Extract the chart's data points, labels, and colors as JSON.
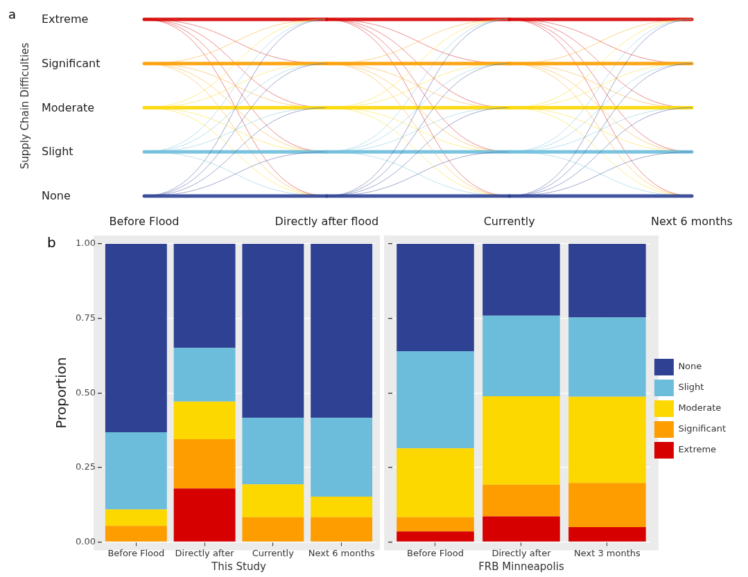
{
  "chart_data": [
    {
      "type": "other",
      "ylabel": "Supply Chain Difficulties",
      "annotations": [
        "a"
      ],
      "categories": [
        "Before Flood",
        "Directly after flood",
        "Currently",
        "Next 6 months"
      ],
      "y_categories": [
        "Extreme",
        "Significant",
        "Moderate",
        "Slight",
        "None"
      ],
      "colors": [
        "#d60000",
        "#fd9d00",
        "#fdd700",
        "#6cbddb",
        "#2e4193"
      ]
    },
    {
      "type": "bar",
      "stacked": true,
      "annotations": [
        "b"
      ],
      "ylabel": "Proportion",
      "xlabel": "This Study",
      "categories": [
        "Before Flood",
        "Directly after",
        "Currently",
        "Next 6 months"
      ],
      "ylim": [
        0,
        1
      ],
      "yticks": [
        {
          "value": 0,
          "label": "0.00"
        },
        {
          "value": 0.25,
          "label": "0.25"
        },
        {
          "value": 0.5,
          "label": "0.50"
        },
        {
          "value": 0.75,
          "label": "0.75"
        },
        {
          "value": 1,
          "label": "1.00"
        }
      ],
      "grid": true,
      "legend": false,
      "series": [
        {
          "color": "#d60000",
          "values": [
            0,
            0.179,
            0,
            0
          ]
        },
        {
          "color": "#fd9d00",
          "values": [
            0.054,
            0.166,
            0.083,
            0.083
          ]
        },
        {
          "color": "#fdd700",
          "values": [
            0.055,
            0.126,
            0.11,
            0.069
          ]
        },
        {
          "color": "#6cbddb",
          "values": [
            0.259,
            0.18,
            0.223,
            0.264
          ]
        },
        {
          "color": "#2e4193",
          "values": [
            0.632,
            0.349,
            0.584,
            0.584
          ]
        }
      ]
    },
    {
      "type": "bar",
      "stacked": true,
      "xlabel": "FRB Minneapolis",
      "categories": [
        "Before Flood",
        "Directly after",
        "Next 3 months"
      ],
      "ylim": [
        0,
        1
      ],
      "yticks": [
        {
          "value": 0,
          "label": null
        },
        {
          "value": 0.25,
          "label": null
        },
        {
          "value": 0.5,
          "label": null
        },
        {
          "value": 0.75,
          "label": null
        },
        {
          "value": 1,
          "label": null
        }
      ],
      "tick_labels": "x",
      "grid": true,
      "legend": "right",
      "series": [
        {
          "name": "Extreme",
          "color": "#d60000",
          "values": [
            0.035,
            0.086,
            0.05
          ]
        },
        {
          "name": "Significant",
          "color": "#fd9d00",
          "values": [
            0.048,
            0.106,
            0.148
          ]
        },
        {
          "name": "Moderate",
          "color": "#fdd700",
          "values": [
            0.231,
            0.297,
            0.289
          ]
        },
        {
          "name": "Slight",
          "color": "#6cbddb",
          "values": [
            0.326,
            0.27,
            0.266
          ]
        },
        {
          "name": "None",
          "color": "#2e4193",
          "values": [
            0.36,
            0.241,
            0.247
          ]
        }
      ]
    }
  ]
}
